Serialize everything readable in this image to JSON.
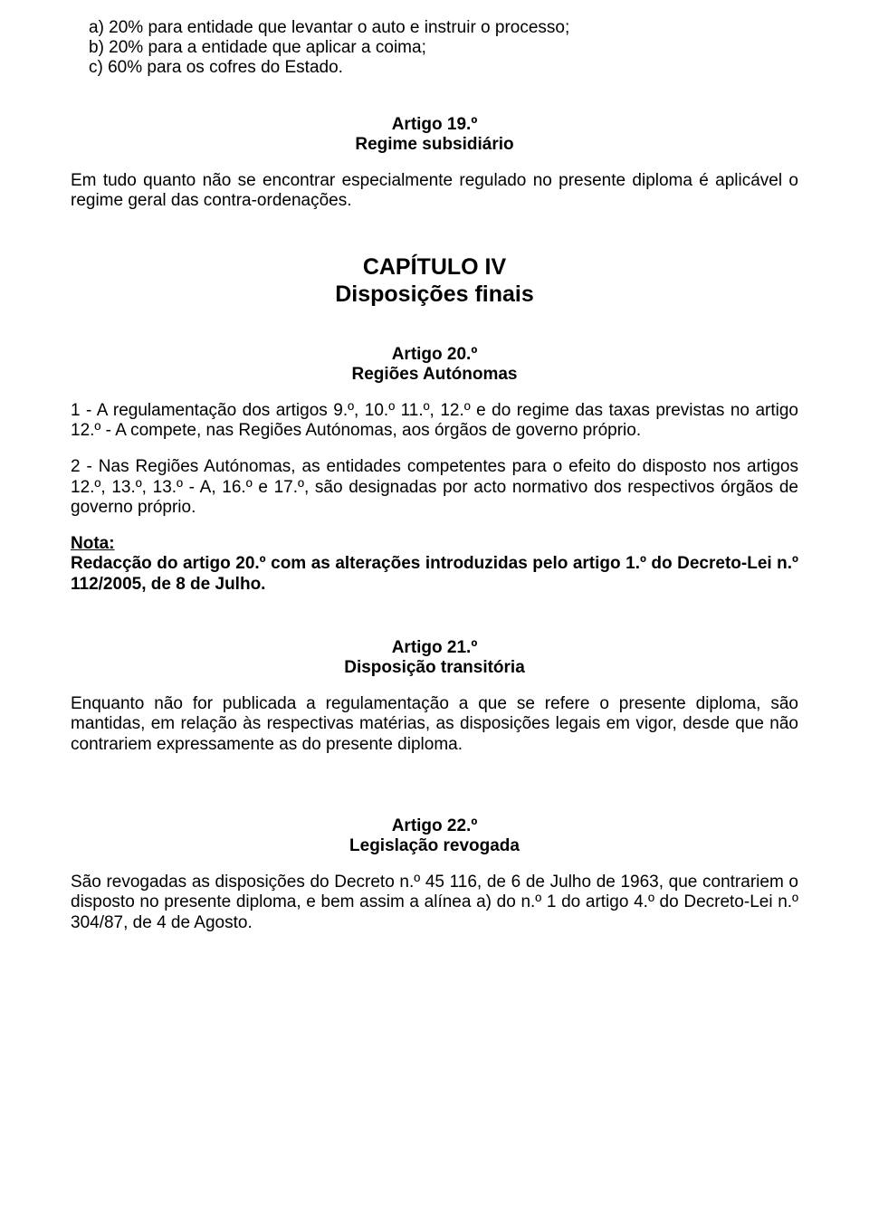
{
  "list": {
    "a": "a)  20% para entidade que levantar o auto e instruir o processo;",
    "b": "b)  20% para a entidade que aplicar a coima;",
    "c": "c)  60% para os cofres do Estado."
  },
  "art19": {
    "title": "Artigo 19.º",
    "subtitle": "Regime subsidiário",
    "body": "Em tudo quanto não se encontrar especialmente regulado no presente diploma é aplicável o regime geral das contra-ordenações."
  },
  "chapter": {
    "line1": "CAPÍTULO IV",
    "line2": "Disposições finais"
  },
  "art20": {
    "title": "Artigo 20.º",
    "subtitle": "Regiões Autónomas",
    "p1": "1 - A regulamentação dos artigos 9.º, 10.º 11.º, 12.º e do regime das taxas previstas no artigo 12.º - A compete, nas Regiões Autónomas, aos órgãos de governo próprio.",
    "p2": "2 - Nas Regiões Autónomas, as entidades competentes para o efeito do disposto nos artigos 12.º, 13.º, 13.º - A, 16.º e 17.º, são designadas por acto normativo dos respectivos órgãos de governo próprio.",
    "note_label": "Nota:",
    "note_text": "Redacção do artigo 20.º com as alterações introduzidas pelo artigo 1.º do Decreto-Lei n.º 112/2005, de 8 de Julho."
  },
  "art21": {
    "title": "Artigo 21.º",
    "subtitle": "Disposição transitória",
    "body": "Enquanto não for publicada a regulamentação a que se refere o presente diploma, são mantidas, em relação às respectivas matérias, as disposições legais em vigor, desde que não contrariem expressamente as do presente diploma."
  },
  "art22": {
    "title": "Artigo 22.º",
    "subtitle": "Legislação revogada",
    "body": "São revogadas as disposições do Decreto n.º 45 116, de 6 de Julho de 1963, que contrariem o disposto no presente diploma, e bem assim a alínea a) do n.º 1 do artigo 4.º do Decreto-Lei n.º 304/87, de 4 de Agosto."
  }
}
